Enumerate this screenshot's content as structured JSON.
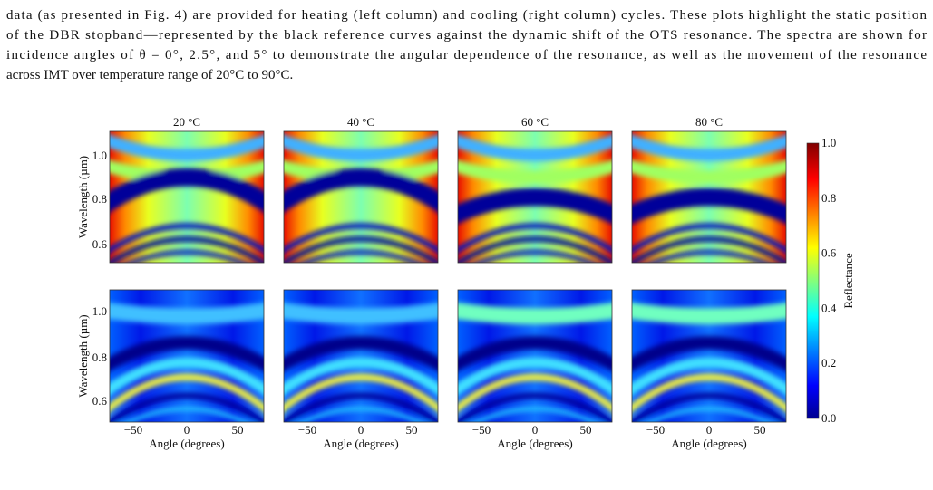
{
  "text": {
    "lines": [
      "data (as presented in Fig. 4) are provided for heating (left column) and cooling (right column) cycles. These plots highlight the static position",
      "of the DBR stopband—represented by the black reference curves against the dynamic shift of the OTS resonance. The spectra are shown for",
      "incidence angles of θ = 0°, 2.5°, and 5° to demonstrate the angular dependence of the resonance, as well as the movement of the resonance",
      "across IMT over temperature range of 20°C to 90°C."
    ]
  },
  "figure": {
    "panel_titles": [
      "20 °C",
      "40 °C",
      "60 °C",
      "80 °C"
    ],
    "y_label": "Wavelength (µm)",
    "x_label": "Angle (degrees)",
    "yticks": [
      "1.0",
      "0.8",
      "0.6"
    ],
    "xticks": [
      "−50",
      "0",
      "50"
    ],
    "colorbar": {
      "label": "Reflectance",
      "ticks": [
        "1.0",
        "0.8",
        "0.6",
        "0.4",
        "0.2",
        "0.0"
      ]
    }
  }
}
